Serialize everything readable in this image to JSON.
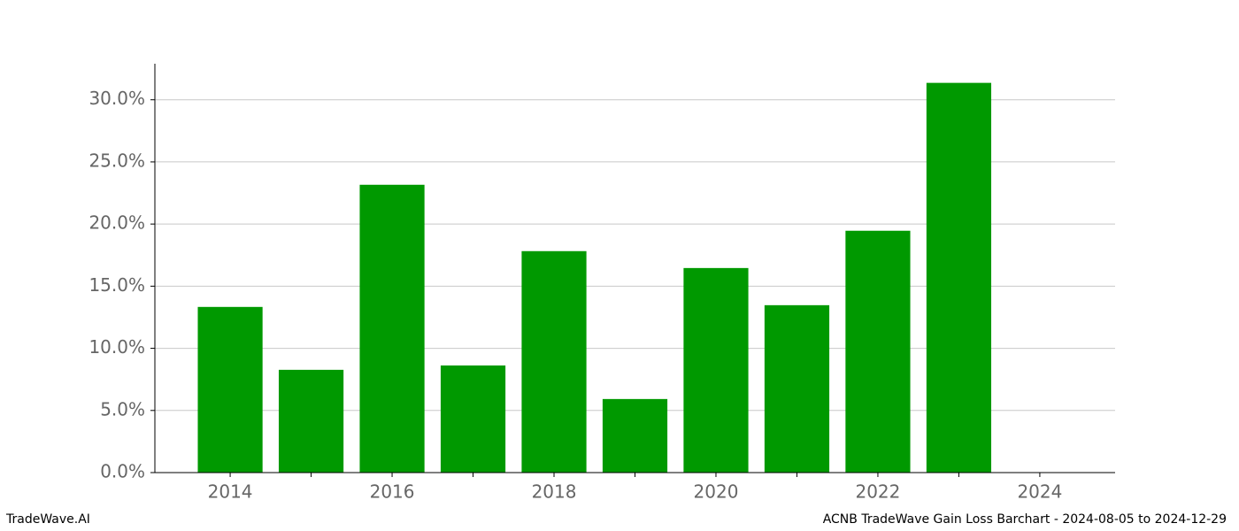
{
  "chart_data": {
    "type": "bar",
    "x": [
      2014,
      2015,
      2016,
      2017,
      2018,
      2019,
      2020,
      2021,
      2022,
      2023
    ],
    "values": [
      13.33,
      8.27,
      23.16,
      8.62,
      17.82,
      5.92,
      16.46,
      13.47,
      19.46,
      31.36
    ],
    "color": "#009900",
    "xlim": [
      2013.07,
      2024.93
    ],
    "xticks": [
      2014,
      2016,
      2018,
      2020,
      2022,
      2024
    ],
    "xminorticks": [
      2015,
      2017,
      2019,
      2021,
      2023
    ],
    "ylim": [
      0,
      32.9
    ],
    "yticks": [
      {
        "value": 0,
        "label": "0.0%"
      },
      {
        "value": 5,
        "label": "5.0%"
      },
      {
        "value": 10,
        "label": "10.0%"
      },
      {
        "value": 15,
        "label": "15.0%"
      },
      {
        "value": 20,
        "label": "20.0%"
      },
      {
        "value": 25,
        "label": "25.0%"
      },
      {
        "value": 30,
        "label": "30.0%"
      }
    ],
    "grid": true,
    "brand": "TradeWave.AI",
    "title": "ACNB TradeWave Gain Loss Barchart - 2024-08-05 to 2024-12-29"
  }
}
